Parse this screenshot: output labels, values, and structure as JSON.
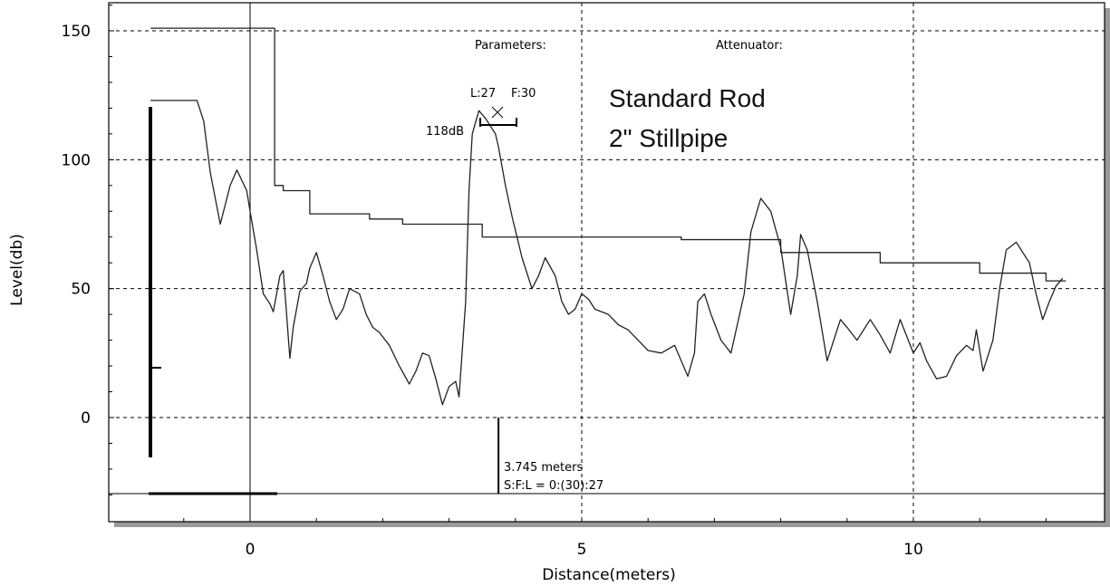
{
  "chart_data": {
    "type": "line",
    "xlabel": "Distance(meters)",
    "ylabel": "Level(db)",
    "xlim": [
      -2,
      12.6
    ],
    "ylim": [
      -40,
      160
    ],
    "xticks": [
      0,
      5,
      10
    ],
    "xtick_labels": [
      "0",
      "5",
      "10"
    ],
    "yticks": [
      150,
      100,
      50,
      0
    ],
    "ytick_labels": [
      "150",
      "100",
      "50",
      "0"
    ],
    "grid": "dashed",
    "annotations": {
      "parameters_label": "Parameters:",
      "attenuator_label": "Attenuator:",
      "l_label": "L:27",
      "f_label": "F:30",
      "peak_label": "118dB",
      "title_line1": "Standard Rod",
      "title_line2": "2\" Stillpipe",
      "distance_label": "3.745 meters",
      "sfl_label": "S:F:L = 0:(30):27"
    },
    "series": [
      {
        "values_desc": "echo",
        "x": [
          -1.5,
          -0.8,
          -0.7,
          -0.6,
          -0.45,
          -0.3,
          -0.2,
          -0.05,
          0.0,
          0.1,
          0.2,
          0.3,
          0.35,
          0.45,
          0.5,
          0.55,
          0.6,
          0.65,
          0.75,
          0.85,
          0.9,
          1.0,
          1.1,
          1.2,
          1.3,
          1.4,
          1.5,
          1.65,
          1.75,
          1.85,
          1.95,
          2.1,
          2.25,
          2.4,
          2.5,
          2.6,
          2.7,
          2.8,
          2.9,
          3.0,
          3.1,
          3.15,
          3.25,
          3.3,
          3.35,
          3.45,
          3.55,
          3.7,
          3.745,
          3.85,
          3.95,
          4.1,
          4.25,
          4.35,
          4.45,
          4.6,
          4.7,
          4.8,
          4.9,
          5.0,
          5.1,
          5.2,
          5.4,
          5.55,
          5.7,
          5.85,
          6.0,
          6.2,
          6.4,
          6.6,
          6.7,
          6.75,
          6.85,
          6.95,
          7.1,
          7.25,
          7.45,
          7.55,
          7.7,
          7.85,
          8.0,
          8.15,
          8.25,
          8.3,
          8.4,
          8.55,
          8.7,
          8.9,
          9.0,
          9.15,
          9.35,
          9.5,
          9.65,
          9.8,
          10.0,
          10.1,
          10.2,
          10.35,
          10.5,
          10.65,
          10.8,
          10.9,
          10.95,
          11.05,
          11.2,
          11.3,
          11.4,
          11.55,
          11.75,
          11.85,
          11.95,
          12.05,
          12.15,
          12.25
        ],
        "y": [
          123,
          123,
          115,
          95,
          75,
          90,
          96,
          88,
          80,
          65,
          48,
          44,
          41,
          55,
          57,
          40,
          23,
          35,
          49,
          52,
          58,
          64,
          55,
          45,
          38,
          42,
          50,
          48,
          40,
          35,
          33,
          28,
          20,
          13,
          18,
          25,
          24,
          15,
          5,
          12,
          14,
          8,
          45,
          88,
          110,
          119,
          116,
          110,
          105,
          90,
          78,
          62,
          50,
          55,
          62,
          55,
          45,
          40,
          42,
          48,
          46,
          42,
          40,
          36,
          34,
          30,
          26,
          25,
          28,
          16,
          25,
          45,
          48,
          40,
          30,
          25,
          48,
          72,
          85,
          80,
          66,
          40,
          55,
          71,
          65,
          45,
          22,
          38,
          35,
          30,
          38,
          32,
          25,
          38,
          25,
          29,
          22,
          15,
          16,
          24,
          28,
          26,
          34,
          18,
          30,
          50,
          65,
          68,
          60,
          48,
          38,
          45,
          51,
          54
        ]
      },
      {
        "values_desc": "threshold",
        "x": [
          -1.5,
          -0.8,
          -0.75,
          0.35,
          0.37,
          0.5,
          0.9,
          1.8,
          2.3,
          3.5,
          4.5,
          5.5,
          6.5,
          8.0,
          9.5,
          11.0,
          12.0,
          12.3
        ],
        "y": [
          151,
          151,
          151,
          151,
          90,
          88,
          79,
          77,
          75,
          70,
          70,
          70,
          69,
          64,
          60,
          56,
          53,
          53
        ]
      }
    ]
  }
}
